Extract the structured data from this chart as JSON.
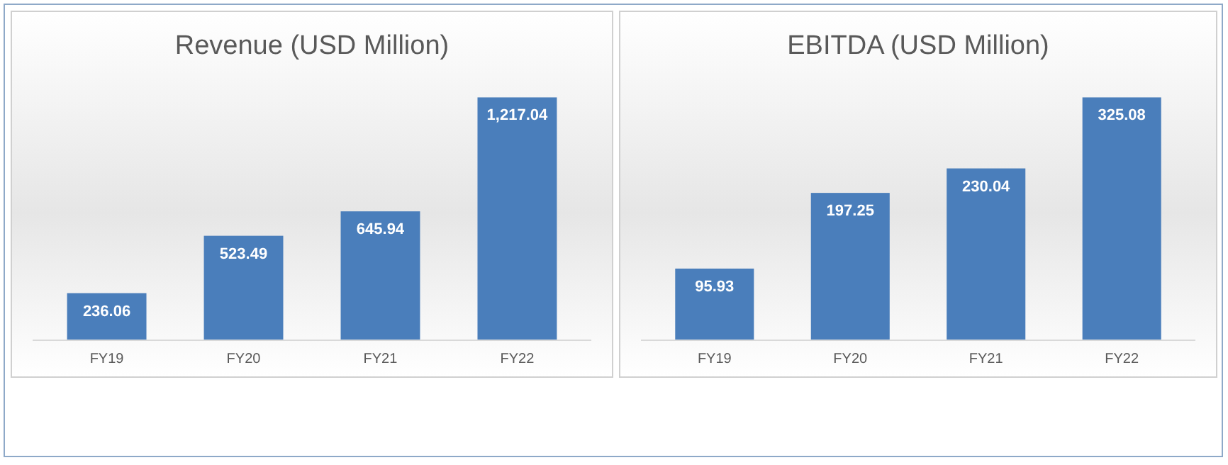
{
  "chart_data": [
    {
      "type": "bar",
      "title": "Revenue (USD Million)",
      "categories": [
        "FY19",
        "FY20",
        "FY21",
        "FY22"
      ],
      "values": [
        236.06,
        523.49,
        645.94,
        1217.04
      ],
      "value_labels": [
        "236.06",
        "523.49",
        "645.94",
        "1,217.04"
      ],
      "color": "#4a7ebb",
      "grid": false
    },
    {
      "type": "bar",
      "title": "EBITDA (USD Million)",
      "categories": [
        "FY19",
        "FY20",
        "FY21",
        "FY22"
      ],
      "values": [
        95.93,
        197.25,
        230.04,
        325.08
      ],
      "data_labels": true,
      "color": "#4a7ebb",
      "grid": false
    }
  ]
}
